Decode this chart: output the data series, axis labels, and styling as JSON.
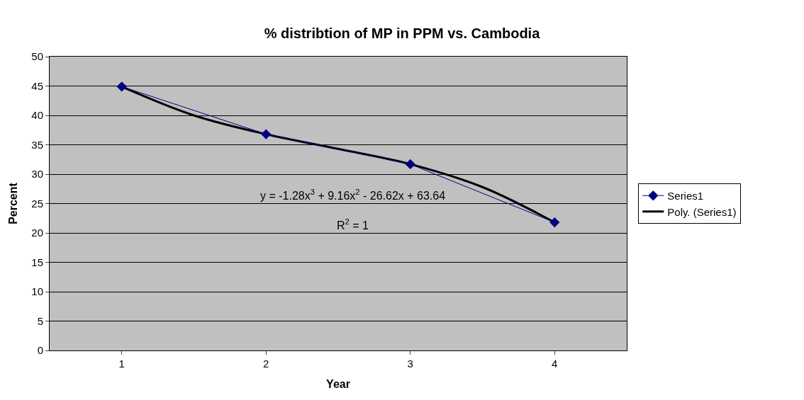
{
  "chart_data": {
    "type": "line",
    "title": "% distribtion of MP in PPM vs. Cambodia",
    "xlabel": "Year",
    "ylabel": "Percent",
    "xlim": [
      0.5,
      4.5
    ],
    "xticks": [
      1,
      2,
      3,
      4
    ],
    "ylim": [
      0,
      50
    ],
    "yticks": [
      0,
      5,
      10,
      15,
      20,
      25,
      30,
      35,
      40,
      45,
      50
    ],
    "grid": "y",
    "legend": "right",
    "series": [
      {
        "name": "Series1",
        "color": "#000080",
        "marker": "diamond",
        "x": [
          1,
          2,
          3,
          4
        ],
        "values": [
          44.9,
          36.8,
          31.7,
          21.8
        ]
      },
      {
        "name": "Poly. (Series1)",
        "color": "#000000",
        "marker": "none",
        "x": [
          1,
          1.5,
          2,
          2.5,
          3,
          3.5,
          4
        ],
        "values": [
          44.9,
          40.0,
          36.8,
          34.3,
          31.7,
          27.8,
          21.8
        ]
      }
    ],
    "annotations": [
      "y = -1.28x$^{3}$ + 9.16x$^{2}$ - 26.62x + 63.64",
      "R$^{2}$ = 1"
    ]
  }
}
